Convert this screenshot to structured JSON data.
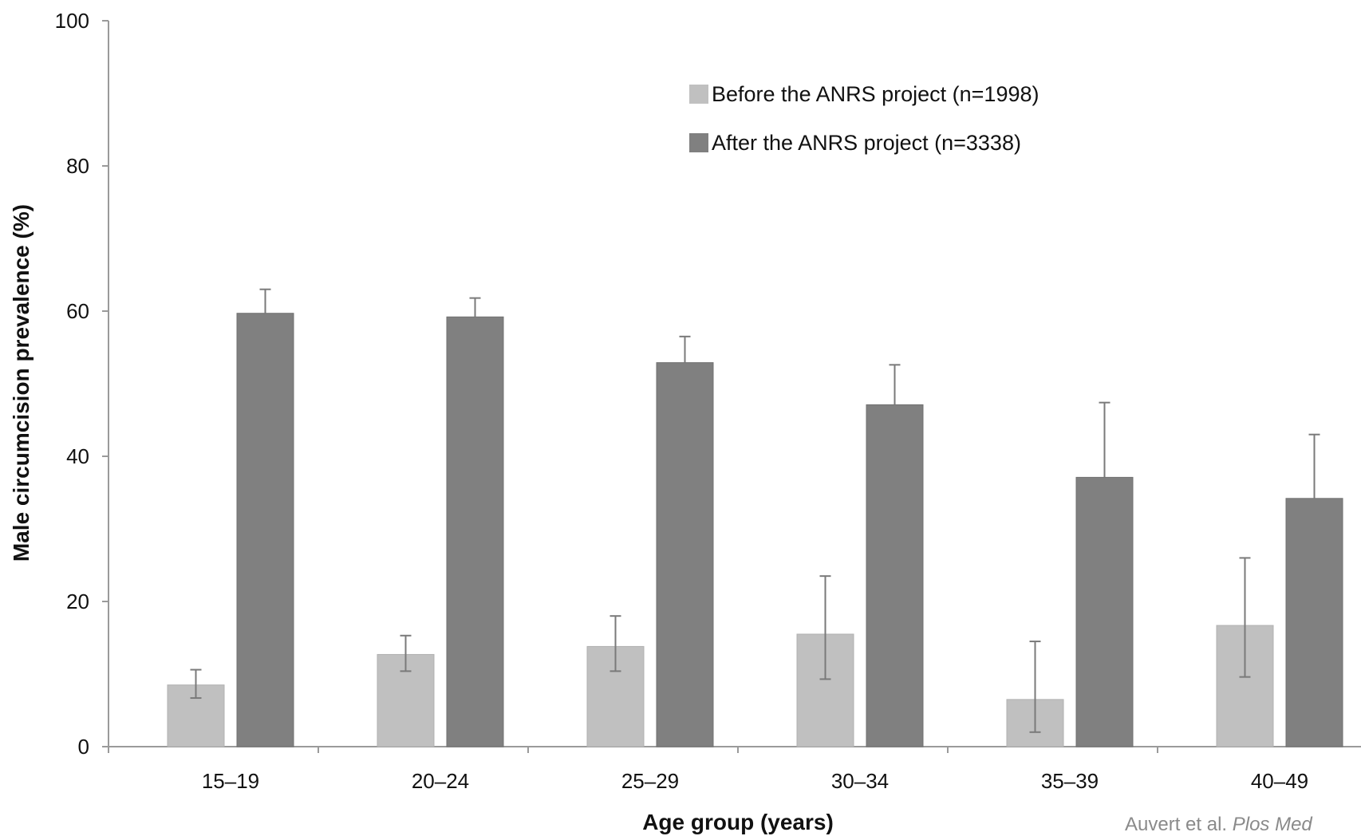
{
  "chart_data": {
    "type": "bar",
    "categories": [
      "15–19",
      "20–24",
      "25–29",
      "30–34",
      "35–39",
      "40–49"
    ],
    "series": [
      {
        "name": "Before the ANRS project (n=1998)",
        "color": "#c0c0c0",
        "values": [
          8.5,
          12.7,
          13.8,
          15.5,
          6.5,
          16.7
        ],
        "error_low": [
          6.7,
          10.4,
          10.4,
          9.3,
          2.0,
          9.6
        ],
        "error_high": [
          10.6,
          15.3,
          18.0,
          23.5,
          14.5,
          26.0
        ]
      },
      {
        "name": "After the ANRS project (n=3338)",
        "color": "#808080",
        "values": [
          59.7,
          59.2,
          52.9,
          47.1,
          37.1,
          34.2
        ],
        "error_low": [
          59.7,
          59.2,
          52.9,
          47.1,
          37.1,
          34.2
        ],
        "error_high": [
          63.0,
          61.8,
          56.5,
          52.6,
          47.4,
          43.0
        ]
      }
    ],
    "xlabel": "Age group (years)",
    "ylabel": "Male circumcision prevalence (%)",
    "ylim": [
      0,
      100
    ],
    "yticks": [
      0,
      20,
      40,
      60,
      80,
      100
    ],
    "grid": false,
    "legend_position": "top-right"
  },
  "source": {
    "authors": "Auvert et al.",
    "journal": "Plos Med"
  }
}
